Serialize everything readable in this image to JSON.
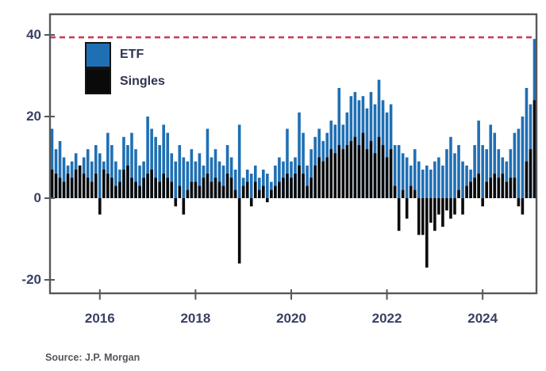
{
  "source_note": "Source: J.P. Morgan",
  "legend": {
    "etf_label": "ETF",
    "singles_label": "Singles"
  },
  "colors": {
    "etf_bar": "#1f6fb4",
    "singles_bar": "#0a0a0a",
    "threshold_line": "#cb3c5a",
    "axis": "#57585c",
    "tick_label": "#3a4066"
  },
  "chart_data": {
    "type": "bar",
    "title": "",
    "xlabel": "",
    "ylabel": "",
    "legend_position": "top-left",
    "grid": false,
    "ylim": [
      -23.5,
      45
    ],
    "yticks": [
      {
        "label": "40",
        "value": 40
      },
      {
        "label": "20",
        "value": 20
      },
      {
        "label": "0",
        "value": 0
      },
      {
        "label": "-20",
        "value": -20
      }
    ],
    "xticks": [
      {
        "label": "2016",
        "month_index": 12
      },
      {
        "label": "2018",
        "month_index": 36
      },
      {
        "label": "2020",
        "month_index": 60
      },
      {
        "label": "2022",
        "month_index": 84
      },
      {
        "label": "2024",
        "month_index": 108
      }
    ],
    "threshold_value": 39.4,
    "months": [
      "2015-01",
      "2015-02",
      "2015-03",
      "2015-04",
      "2015-05",
      "2015-06",
      "2015-07",
      "2015-08",
      "2015-09",
      "2015-10",
      "2015-11",
      "2015-12",
      "2016-01",
      "2016-02",
      "2016-03",
      "2016-04",
      "2016-05",
      "2016-06",
      "2016-07",
      "2016-08",
      "2016-09",
      "2016-10",
      "2016-11",
      "2016-12",
      "2017-01",
      "2017-02",
      "2017-03",
      "2017-04",
      "2017-05",
      "2017-06",
      "2017-07",
      "2017-08",
      "2017-09",
      "2017-10",
      "2017-11",
      "2017-12",
      "2018-01",
      "2018-02",
      "2018-03",
      "2018-04",
      "2018-05",
      "2018-06",
      "2018-07",
      "2018-08",
      "2018-09",
      "2018-10",
      "2018-11",
      "2018-12",
      "2019-01",
      "2019-02",
      "2019-03",
      "2019-04",
      "2019-05",
      "2019-06",
      "2019-07",
      "2019-08",
      "2019-09",
      "2019-10",
      "2019-11",
      "2019-12",
      "2020-01",
      "2020-02",
      "2020-03",
      "2020-04",
      "2020-05",
      "2020-06",
      "2020-07",
      "2020-08",
      "2020-09",
      "2020-10",
      "2020-11",
      "2020-12",
      "2021-01",
      "2021-02",
      "2021-03",
      "2021-04",
      "2021-05",
      "2021-06",
      "2021-07",
      "2021-08",
      "2021-09",
      "2021-10",
      "2021-11",
      "2021-12",
      "2022-01",
      "2022-02",
      "2022-03",
      "2022-04",
      "2022-05",
      "2022-06",
      "2022-07",
      "2022-08",
      "2022-09",
      "2022-10",
      "2022-11",
      "2022-12",
      "2023-01",
      "2023-02",
      "2023-03",
      "2023-04",
      "2023-05",
      "2023-06",
      "2023-07",
      "2023-08",
      "2023-09",
      "2023-10",
      "2023-11",
      "2023-12",
      "2024-01",
      "2024-02",
      "2024-03",
      "2024-04",
      "2024-05",
      "2024-06",
      "2024-07",
      "2024-08",
      "2024-09",
      "2024-10",
      "2024-11",
      "2024-12",
      "2025-01",
      "2025-02"
    ],
    "series": [
      {
        "name": "ETF",
        "color": "#1f6fb4",
        "values": [
          17,
          12,
          14,
          10,
          8,
          9,
          11,
          8,
          10,
          12,
          9,
          13,
          11,
          9,
          16,
          13,
          9,
          7,
          15,
          13,
          16,
          12,
          8,
          9,
          20,
          17,
          15,
          13,
          18,
          16,
          11,
          9,
          13,
          10,
          9,
          12,
          9,
          11,
          8,
          17,
          10,
          12,
          9,
          8,
          13,
          10,
          7,
          18,
          5,
          7,
          6,
          8,
          5,
          7,
          6,
          4,
          8,
          10,
          9,
          17,
          9,
          10,
          21,
          16,
          8,
          12,
          15,
          17,
          14,
          16,
          19,
          18,
          27,
          18,
          21,
          25,
          26,
          24,
          25,
          22,
          26,
          23,
          29,
          24,
          21,
          23,
          13,
          13,
          11,
          10,
          8,
          12,
          9,
          7,
          8,
          7,
          9,
          10,
          8,
          12,
          15,
          11,
          13,
          9,
          8,
          7,
          13,
          19,
          13,
          12,
          18,
          16,
          12,
          10,
          9,
          12,
          16,
          17,
          20,
          27,
          23,
          39
        ]
      },
      {
        "name": "Singles",
        "color": "#0a0a0a",
        "values": [
          7,
          6,
          5,
          4,
          6,
          5,
          7,
          8,
          6,
          5,
          4,
          6,
          -4,
          7,
          6,
          5,
          3,
          4,
          7,
          8,
          5,
          4,
          3,
          5,
          6,
          7,
          5,
          4,
          6,
          5,
          4,
          -2,
          3,
          -4,
          2,
          4,
          4,
          3,
          5,
          6,
          4,
          5,
          4,
          3,
          6,
          5,
          2,
          -16,
          3,
          4,
          -2,
          4,
          2,
          3,
          -1,
          2,
          3,
          4,
          5,
          6,
          5,
          6,
          8,
          6,
          3,
          5,
          8,
          10,
          9,
          10,
          12,
          11,
          13,
          12,
          13,
          14,
          15,
          13,
          16,
          12,
          14,
          11,
          15,
          13,
          10,
          12,
          3,
          -8,
          2,
          -5,
          3,
          2,
          -9,
          -9,
          -17,
          -6,
          -8,
          -4,
          -7,
          -3,
          -5,
          -4,
          2,
          -4,
          3,
          4,
          5,
          6,
          -2,
          4,
          5,
          6,
          5,
          6,
          4,
          5,
          5,
          -2,
          -4,
          9,
          12,
          24
        ]
      }
    ]
  }
}
